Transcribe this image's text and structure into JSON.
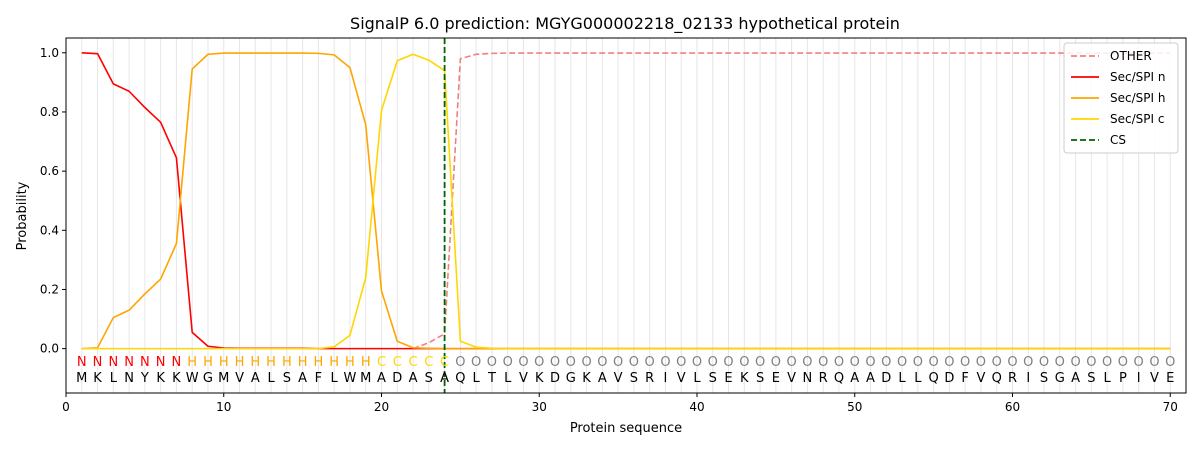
{
  "chart_data": {
    "type": "line",
    "title": "SignalP 6.0 prediction: MGYG000002218_02133 hypothetical protein",
    "xlabel": "Protein sequence",
    "ylabel": "Probability",
    "xlim": [
      0,
      71
    ],
    "ylim": [
      -0.15,
      1.05
    ],
    "xticks": [
      0,
      10,
      20,
      30,
      40,
      50,
      60,
      70
    ],
    "yticks": [
      0.0,
      0.2,
      0.4,
      0.6,
      0.8,
      1.0
    ],
    "xtick_labels": [
      "0",
      "10",
      "20",
      "30",
      "40",
      "50",
      "60",
      "70"
    ],
    "ytick_labels": [
      "0.0",
      "0.2",
      "0.4",
      "0.6",
      "0.8",
      "1.0"
    ],
    "grid": "vertical lines at each residue",
    "legend_position": "top-right",
    "sequence": [
      "M",
      "K",
      "L",
      "N",
      "Y",
      "K",
      "K",
      "W",
      "G",
      "M",
      "V",
      "A",
      "L",
      "S",
      "A",
      "F",
      "L",
      "W",
      "M",
      "A",
      "D",
      "A",
      "S",
      "A",
      "Q",
      "L",
      "T",
      "L",
      "V",
      "K",
      "D",
      "G",
      "K",
      "A",
      "V",
      "S",
      "R",
      "I",
      "V",
      "L",
      "S",
      "E",
      "K",
      "S",
      "E",
      "V",
      "N",
      "R",
      "Q",
      "A",
      "A",
      "D",
      "L",
      "L",
      "Q",
      "D",
      "F",
      "V",
      "Q",
      "R",
      "I",
      "S",
      "G",
      "A",
      "S",
      "L",
      "P",
      "I",
      "V",
      "E"
    ],
    "region_labels": [
      "N",
      "N",
      "N",
      "N",
      "N",
      "N",
      "N",
      "H",
      "H",
      "H",
      "H",
      "H",
      "H",
      "H",
      "H",
      "H",
      "H",
      "H",
      "H",
      "C",
      "C",
      "C",
      "C",
      "C",
      "O",
      "O",
      "O",
      "O",
      "O",
      "O",
      "O",
      "O",
      "O",
      "O",
      "O",
      "O",
      "O",
      "O",
      "O",
      "O",
      "O",
      "O",
      "O",
      "O",
      "O",
      "O",
      "O",
      "O",
      "O",
      "O",
      "O",
      "O",
      "O",
      "O",
      "O",
      "O",
      "O",
      "O",
      "O",
      "O",
      "O",
      "O",
      "O",
      "O",
      "O",
      "O",
      "O",
      "O",
      "O",
      "O"
    ],
    "region_label_colors": {
      "N": "#ff0000",
      "H": "#ffa500",
      "C": "#ffd700",
      "O": "#808080"
    },
    "series": [
      {
        "name": "OTHER",
        "color": "#f08080",
        "style": "dashed",
        "x_start": 22,
        "values": [
          0.0,
          0.02,
          0.05,
          0.98,
          0.995,
          0.998,
          0.999,
          0.999,
          0.999,
          0.999,
          0.999,
          0.999,
          0.999,
          0.999,
          0.999,
          0.999,
          0.999,
          0.999,
          0.999,
          0.999,
          0.999,
          0.999,
          0.999,
          0.999,
          0.999,
          0.999,
          0.999,
          0.999,
          0.999,
          0.999,
          0.999,
          0.999,
          0.999,
          0.999,
          0.999,
          0.999,
          0.999,
          0.999,
          0.999,
          0.999,
          0.999,
          0.999,
          0.999,
          0.999,
          0.999,
          0.999,
          0.999,
          0.999,
          0.999
        ]
      },
      {
        "name": "Sec/SPI n",
        "color": "#ff0000",
        "style": "solid",
        "x_start": 1,
        "values": [
          1.0,
          0.997,
          0.895,
          0.87,
          0.815,
          0.765,
          0.645,
          0.055,
          0.008,
          0.002,
          0.001,
          0.001,
          0.001,
          0.001,
          0.001,
          0.0,
          0.0,
          0.0,
          0.0,
          0.0,
          0.0,
          0.0,
          0.0,
          0.0,
          0.0,
          0.0,
          0.0,
          0.0,
          0.0,
          0.0,
          0.0,
          0.0,
          0.0,
          0.0,
          0.0,
          0.0,
          0.0,
          0.0,
          0.0,
          0.0,
          0.0,
          0.0,
          0.0,
          0.0,
          0.0,
          0.0,
          0.0,
          0.0,
          0.0,
          0.0,
          0.0,
          0.0,
          0.0,
          0.0,
          0.0,
          0.0,
          0.0,
          0.0,
          0.0,
          0.0,
          0.0,
          0.0,
          0.0,
          0.0,
          0.0,
          0.0,
          0.0,
          0.0,
          0.0,
          0.0
        ]
      },
      {
        "name": "Sec/SPI h",
        "color": "#ffa500",
        "style": "solid",
        "x_start": 1,
        "values": [
          0.0,
          0.003,
          0.105,
          0.13,
          0.185,
          0.235,
          0.355,
          0.945,
          0.995,
          0.999,
          0.999,
          0.999,
          0.999,
          0.999,
          0.999,
          0.998,
          0.993,
          0.95,
          0.757,
          0.195,
          0.025,
          0.003,
          0.001,
          0.0,
          0.0,
          0.0,
          0.0,
          0.0,
          0.0,
          0.0,
          0.0,
          0.0,
          0.0,
          0.0,
          0.0,
          0.0,
          0.0,
          0.0,
          0.0,
          0.0,
          0.0,
          0.0,
          0.0,
          0.0,
          0.0,
          0.0,
          0.0,
          0.0,
          0.0,
          0.0,
          0.0,
          0.0,
          0.0,
          0.0,
          0.0,
          0.0,
          0.0,
          0.0,
          0.0,
          0.0,
          0.0,
          0.0,
          0.0,
          0.0,
          0.0,
          0.0,
          0.0,
          0.0,
          0.0,
          0.0
        ]
      },
      {
        "name": "Sec/SPI c",
        "color": "#ffd700",
        "style": "solid",
        "x_start": 1,
        "values": [
          0.0,
          0.0,
          0.0,
          0.0,
          0.0,
          0.0,
          0.0,
          0.0,
          0.0,
          0.0,
          0.0,
          0.0,
          0.0,
          0.0,
          0.0,
          0.0,
          0.006,
          0.045,
          0.24,
          0.805,
          0.973,
          0.995,
          0.975,
          0.94,
          0.025,
          0.005,
          0.001,
          0.0,
          0.0,
          0.0,
          0.0,
          0.0,
          0.0,
          0.0,
          0.0,
          0.0,
          0.0,
          0.0,
          0.0,
          0.0,
          0.0,
          0.0,
          0.0,
          0.0,
          0.0,
          0.0,
          0.0,
          0.0,
          0.0,
          0.0,
          0.0,
          0.0,
          0.0,
          0.0,
          0.0,
          0.0,
          0.0,
          0.0,
          0.0,
          0.0,
          0.0,
          0.0,
          0.0,
          0.0,
          0.0,
          0.0,
          0.0,
          0.0,
          0.0,
          0.0
        ]
      }
    ],
    "cleavage_site": {
      "name": "CS",
      "x": 24,
      "color": "#006400",
      "style": "dashed"
    }
  }
}
